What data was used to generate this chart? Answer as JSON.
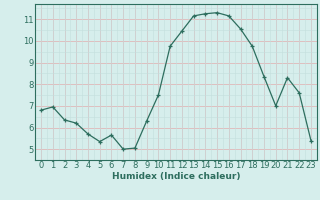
{
  "x": [
    0,
    1,
    2,
    3,
    4,
    5,
    6,
    7,
    8,
    9,
    10,
    11,
    12,
    13,
    14,
    15,
    16,
    17,
    18,
    19,
    20,
    21,
    22,
    23
  ],
  "y": [
    6.8,
    6.95,
    6.35,
    6.2,
    5.7,
    5.35,
    5.65,
    5.0,
    5.05,
    6.3,
    7.5,
    9.75,
    10.45,
    11.15,
    11.25,
    11.3,
    11.15,
    10.55,
    9.75,
    8.35,
    7.0,
    8.3,
    7.6,
    5.4
  ],
  "line_color": "#2d6e5e",
  "marker": "+",
  "bg_color": "#d6eeec",
  "grid_color": "#c4dedd",
  "grid_minor_color": "#e0b8b8",
  "xlabel": "Humidex (Indice chaleur)",
  "xlim": [
    -0.5,
    23.5
  ],
  "ylim": [
    4.5,
    11.7
  ],
  "yticks": [
    5,
    6,
    7,
    8,
    9,
    10,
    11
  ],
  "xticks": [
    0,
    1,
    2,
    3,
    4,
    5,
    6,
    7,
    8,
    9,
    10,
    11,
    12,
    13,
    14,
    15,
    16,
    17,
    18,
    19,
    20,
    21,
    22,
    23
  ],
  "font_color": "#2d6e5e",
  "xlabel_fontsize": 6.5,
  "tick_fontsize": 6.0
}
